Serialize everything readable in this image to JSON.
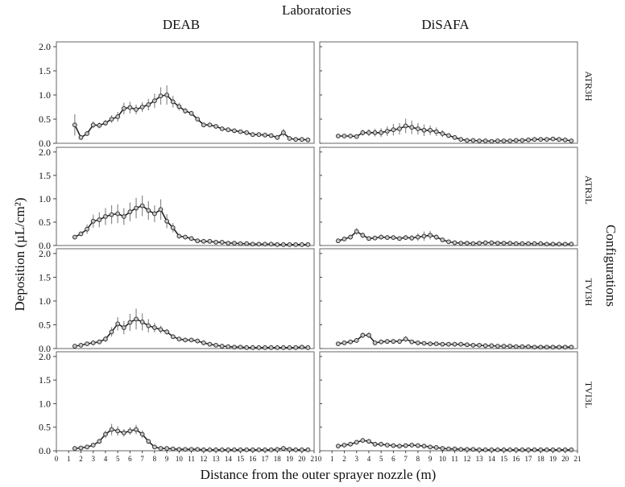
{
  "header": "Laboratories",
  "right_label": "Configurations",
  "y_label": "Deposition (µL/cm²)",
  "x_label": "Distance from the outer sprayer nozzle (m)",
  "columns": [
    "DEAB",
    "DiSAFA"
  ],
  "rows": [
    "ATR3H",
    "ATR3L",
    "TVI3H",
    "TVI3L"
  ],
  "chart_data": {
    "type": "line",
    "layout": "4 rows x 2 columns small multiples",
    "x_ticks": [
      0,
      1,
      2,
      3,
      4,
      5,
      6,
      7,
      8,
      9,
      10,
      11,
      12,
      13,
      14,
      15,
      16,
      17,
      18,
      19,
      20,
      21
    ],
    "y_ticks": [
      "0.0",
      "0.5",
      "1.0",
      "1.5",
      "2.0"
    ],
    "xlim": [
      0,
      21
    ],
    "ylim": [
      0,
      2.1
    ],
    "series_color": "#222222",
    "point_fill": "#c8c8c8",
    "errorbar_color": "#8a8a8a",
    "panels": [
      {
        "row": "ATR3H",
        "col": "DEAB",
        "x": [
          1.5,
          2,
          2.5,
          3,
          3.5,
          4,
          4.5,
          5,
          5.5,
          6,
          6.5,
          7,
          7.5,
          8,
          8.5,
          9,
          9.5,
          10,
          10.5,
          11,
          11.5,
          12,
          12.5,
          13,
          13.5,
          14,
          14.5,
          15,
          15.5,
          16,
          16.5,
          17,
          17.5,
          18,
          18.5,
          19,
          19.5,
          20,
          20.5
        ],
        "y": [
          0.38,
          0.12,
          0.2,
          0.38,
          0.37,
          0.42,
          0.5,
          0.55,
          0.72,
          0.74,
          0.7,
          0.75,
          0.8,
          0.88,
          0.98,
          1.0,
          0.86,
          0.76,
          0.67,
          0.62,
          0.5,
          0.38,
          0.38,
          0.35,
          0.3,
          0.28,
          0.26,
          0.24,
          0.22,
          0.18,
          0.18,
          0.17,
          0.16,
          0.12,
          0.22,
          0.1,
          0.08,
          0.08,
          0.07
        ],
        "err": [
          0.22,
          0.04,
          0.05,
          0.07,
          0.06,
          0.06,
          0.08,
          0.1,
          0.12,
          0.12,
          0.1,
          0.1,
          0.12,
          0.15,
          0.18,
          0.2,
          0.12,
          0.08,
          0.06,
          0.05,
          0.04,
          0.04,
          0.03,
          0.03,
          0.03,
          0.03,
          0.03,
          0.02,
          0.02,
          0.02,
          0.02,
          0.02,
          0.02,
          0.02,
          0.08,
          0.02,
          0.02,
          0.02,
          0.02
        ]
      },
      {
        "row": "ATR3H",
        "col": "DiSAFA",
        "x": [
          1.5,
          2,
          2.5,
          3,
          3.5,
          4,
          4.5,
          5,
          5.5,
          6,
          6.5,
          7,
          7.5,
          8,
          8.5,
          9,
          9.5,
          10,
          10.5,
          11,
          11.5,
          12,
          12.5,
          13,
          13.5,
          14,
          14.5,
          15,
          15.5,
          16,
          16.5,
          17,
          17.5,
          18,
          18.5,
          19,
          19.5,
          20,
          20.5
        ],
        "y": [
          0.15,
          0.15,
          0.15,
          0.14,
          0.22,
          0.22,
          0.22,
          0.22,
          0.25,
          0.28,
          0.3,
          0.36,
          0.33,
          0.3,
          0.27,
          0.27,
          0.24,
          0.2,
          0.16,
          0.12,
          0.08,
          0.06,
          0.06,
          0.05,
          0.05,
          0.04,
          0.05,
          0.05,
          0.05,
          0.06,
          0.06,
          0.07,
          0.08,
          0.08,
          0.08,
          0.09,
          0.08,
          0.07,
          0.05
        ],
        "err": [
          0.04,
          0.04,
          0.04,
          0.04,
          0.06,
          0.07,
          0.08,
          0.09,
          0.1,
          0.12,
          0.12,
          0.15,
          0.14,
          0.12,
          0.12,
          0.1,
          0.09,
          0.07,
          0.05,
          0.04,
          0.03,
          0.02,
          0.02,
          0.02,
          0.02,
          0.02,
          0.02,
          0.02,
          0.02,
          0.02,
          0.02,
          0.02,
          0.02,
          0.02,
          0.02,
          0.02,
          0.02,
          0.02,
          0.02
        ]
      },
      {
        "row": "ATR3L",
        "col": "DEAB",
        "x": [
          1.5,
          2,
          2.5,
          3,
          3.5,
          4,
          4.5,
          5,
          5.5,
          6,
          6.5,
          7,
          7.5,
          8,
          8.5,
          9,
          9.5,
          10,
          10.5,
          11,
          11.5,
          12,
          12.5,
          13,
          13.5,
          14,
          14.5,
          15,
          15.5,
          16,
          16.5,
          17,
          17.5,
          18,
          18.5,
          19,
          19.5,
          20,
          20.5
        ],
        "y": [
          0.18,
          0.25,
          0.35,
          0.52,
          0.55,
          0.62,
          0.66,
          0.68,
          0.62,
          0.72,
          0.8,
          0.85,
          0.75,
          0.68,
          0.77,
          0.52,
          0.38,
          0.2,
          0.18,
          0.15,
          0.1,
          0.09,
          0.09,
          0.07,
          0.07,
          0.05,
          0.05,
          0.04,
          0.04,
          0.03,
          0.03,
          0.03,
          0.03,
          0.02,
          0.02,
          0.02,
          0.02,
          0.02,
          0.02
        ],
        "err": [
          0.04,
          0.05,
          0.1,
          0.14,
          0.16,
          0.18,
          0.2,
          0.2,
          0.18,
          0.2,
          0.22,
          0.22,
          0.2,
          0.18,
          0.22,
          0.15,
          0.1,
          0.05,
          0.04,
          0.03,
          0.02,
          0.02,
          0.02,
          0.02,
          0.02,
          0.02,
          0.02,
          0.02,
          0.01,
          0.01,
          0.01,
          0.01,
          0.01,
          0.01,
          0.01,
          0.01,
          0.01,
          0.01,
          0.01
        ]
      },
      {
        "row": "ATR3L",
        "col": "DiSAFA",
        "x": [
          1.5,
          2,
          2.5,
          3,
          3.5,
          4,
          4.5,
          5,
          5.5,
          6,
          6.5,
          7,
          7.5,
          8,
          8.5,
          9,
          9.5,
          10,
          10.5,
          11,
          11.5,
          12,
          12.5,
          13,
          13.5,
          14,
          14.5,
          15,
          15.5,
          16,
          16.5,
          17,
          17.5,
          18,
          18.5,
          19,
          19.5,
          20,
          20.5
        ],
        "y": [
          0.1,
          0.14,
          0.18,
          0.3,
          0.22,
          0.15,
          0.16,
          0.18,
          0.17,
          0.17,
          0.15,
          0.17,
          0.16,
          0.18,
          0.2,
          0.22,
          0.18,
          0.12,
          0.08,
          0.06,
          0.05,
          0.05,
          0.04,
          0.05,
          0.06,
          0.06,
          0.05,
          0.05,
          0.05,
          0.04,
          0.04,
          0.04,
          0.04,
          0.04,
          0.03,
          0.03,
          0.03,
          0.03,
          0.03
        ],
        "err": [
          0.03,
          0.04,
          0.05,
          0.07,
          0.06,
          0.04,
          0.04,
          0.05,
          0.05,
          0.05,
          0.04,
          0.05,
          0.06,
          0.08,
          0.1,
          0.09,
          0.06,
          0.04,
          0.02,
          0.02,
          0.02,
          0.02,
          0.01,
          0.02,
          0.02,
          0.02,
          0.02,
          0.02,
          0.01,
          0.01,
          0.01,
          0.01,
          0.01,
          0.01,
          0.01,
          0.01,
          0.01,
          0.01,
          0.01
        ]
      },
      {
        "row": "TVI3H",
        "col": "DEAB",
        "x": [
          1.5,
          2,
          2.5,
          3,
          3.5,
          4,
          4.5,
          5,
          5.5,
          6,
          6.5,
          7,
          7.5,
          8,
          8.5,
          9,
          9.5,
          10,
          10.5,
          11,
          11.5,
          12,
          12.5,
          13,
          13.5,
          14,
          14.5,
          15,
          15.5,
          16,
          16.5,
          17,
          17.5,
          18,
          18.5,
          19,
          19.5,
          20,
          20.5
        ],
        "y": [
          0.05,
          0.07,
          0.1,
          0.12,
          0.14,
          0.2,
          0.35,
          0.52,
          0.44,
          0.55,
          0.62,
          0.56,
          0.48,
          0.44,
          0.4,
          0.35,
          0.25,
          0.2,
          0.18,
          0.18,
          0.16,
          0.12,
          0.09,
          0.07,
          0.05,
          0.04,
          0.03,
          0.03,
          0.02,
          0.02,
          0.02,
          0.02,
          0.02,
          0.02,
          0.02,
          0.02,
          0.02,
          0.03,
          0.02
        ],
        "err": [
          0.02,
          0.02,
          0.03,
          0.04,
          0.05,
          0.06,
          0.1,
          0.14,
          0.14,
          0.18,
          0.22,
          0.18,
          0.14,
          0.1,
          0.08,
          0.06,
          0.05,
          0.04,
          0.04,
          0.03,
          0.03,
          0.02,
          0.02,
          0.02,
          0.01,
          0.01,
          0.01,
          0.01,
          0.01,
          0.01,
          0.01,
          0.01,
          0.01,
          0.01,
          0.01,
          0.01,
          0.01,
          0.01,
          0.01
        ]
      },
      {
        "row": "TVI3H",
        "col": "DiSAFA",
        "x": [
          1.5,
          2,
          2.5,
          3,
          3.5,
          4,
          4.5,
          5,
          5.5,
          6,
          6.5,
          7,
          7.5,
          8,
          8.5,
          9,
          9.5,
          10,
          10.5,
          11,
          11.5,
          12,
          12.5,
          13,
          13.5,
          14,
          14.5,
          15,
          15.5,
          16,
          16.5,
          17,
          17.5,
          18,
          18.5,
          19,
          19.5,
          20,
          20.5
        ],
        "y": [
          0.1,
          0.12,
          0.14,
          0.17,
          0.28,
          0.28,
          0.12,
          0.14,
          0.15,
          0.15,
          0.15,
          0.2,
          0.14,
          0.12,
          0.11,
          0.1,
          0.1,
          0.09,
          0.09,
          0.09,
          0.09,
          0.08,
          0.07,
          0.07,
          0.06,
          0.06,
          0.05,
          0.05,
          0.05,
          0.04,
          0.04,
          0.04,
          0.03,
          0.03,
          0.03,
          0.03,
          0.03,
          0.03,
          0.03
        ],
        "err": [
          0.03,
          0.03,
          0.04,
          0.05,
          0.06,
          0.06,
          0.04,
          0.04,
          0.05,
          0.05,
          0.05,
          0.06,
          0.04,
          0.03,
          0.03,
          0.03,
          0.02,
          0.02,
          0.02,
          0.02,
          0.02,
          0.02,
          0.02,
          0.02,
          0.01,
          0.01,
          0.01,
          0.01,
          0.01,
          0.01,
          0.01,
          0.01,
          0.01,
          0.01,
          0.01,
          0.01,
          0.01,
          0.01,
          0.01
        ]
      },
      {
        "row": "TVI3L",
        "col": "DEAB",
        "x": [
          1.5,
          2,
          2.5,
          3,
          3.5,
          4,
          4.5,
          5,
          5.5,
          6,
          6.5,
          7,
          7.5,
          8,
          8.5,
          9,
          9.5,
          10,
          10.5,
          11,
          11.5,
          12,
          12.5,
          13,
          13.5,
          14,
          14.5,
          15,
          15.5,
          16,
          16.5,
          17,
          17.5,
          18,
          18.5,
          19,
          19.5,
          20,
          20.5
        ],
        "y": [
          0.05,
          0.06,
          0.08,
          0.12,
          0.2,
          0.35,
          0.45,
          0.42,
          0.38,
          0.42,
          0.45,
          0.35,
          0.2,
          0.08,
          0.05,
          0.05,
          0.04,
          0.03,
          0.03,
          0.03,
          0.03,
          0.02,
          0.02,
          0.02,
          0.02,
          0.02,
          0.02,
          0.02,
          0.02,
          0.02,
          0.02,
          0.02,
          0.02,
          0.03,
          0.05,
          0.03,
          0.02,
          0.02,
          0.02
        ],
        "err": [
          0.02,
          0.02,
          0.02,
          0.03,
          0.05,
          0.08,
          0.12,
          0.1,
          0.08,
          0.08,
          0.1,
          0.08,
          0.05,
          0.02,
          0.02,
          0.01,
          0.01,
          0.01,
          0.01,
          0.01,
          0.01,
          0.01,
          0.01,
          0.01,
          0.01,
          0.01,
          0.01,
          0.01,
          0.01,
          0.01,
          0.01,
          0.01,
          0.01,
          0.01,
          0.02,
          0.01,
          0.01,
          0.01,
          0.01
        ]
      },
      {
        "row": "TVI3L",
        "col": "DiSAFA",
        "x": [
          1.5,
          2,
          2.5,
          3,
          3.5,
          4,
          4.5,
          5,
          5.5,
          6,
          6.5,
          7,
          7.5,
          8,
          8.5,
          9,
          9.5,
          10,
          10.5,
          11,
          11.5,
          12,
          12.5,
          13,
          13.5,
          14,
          14.5,
          15,
          15.5,
          16,
          16.5,
          17,
          17.5,
          18,
          18.5,
          19,
          19.5,
          20,
          20.5
        ],
        "y": [
          0.1,
          0.12,
          0.14,
          0.18,
          0.22,
          0.2,
          0.14,
          0.14,
          0.12,
          0.11,
          0.1,
          0.11,
          0.12,
          0.11,
          0.1,
          0.08,
          0.07,
          0.05,
          0.04,
          0.04,
          0.03,
          0.03,
          0.03,
          0.02,
          0.02,
          0.02,
          0.02,
          0.02,
          0.02,
          0.02,
          0.02,
          0.02,
          0.02,
          0.02,
          0.02,
          0.02,
          0.02,
          0.02,
          0.02
        ],
        "err": [
          0.02,
          0.03,
          0.03,
          0.04,
          0.05,
          0.05,
          0.03,
          0.03,
          0.03,
          0.03,
          0.02,
          0.03,
          0.03,
          0.03,
          0.02,
          0.02,
          0.02,
          0.01,
          0.01,
          0.01,
          0.01,
          0.01,
          0.01,
          0.01,
          0.01,
          0.01,
          0.01,
          0.01,
          0.01,
          0.01,
          0.01,
          0.01,
          0.01,
          0.01,
          0.01,
          0.01,
          0.01,
          0.01,
          0.01
        ]
      }
    ]
  }
}
